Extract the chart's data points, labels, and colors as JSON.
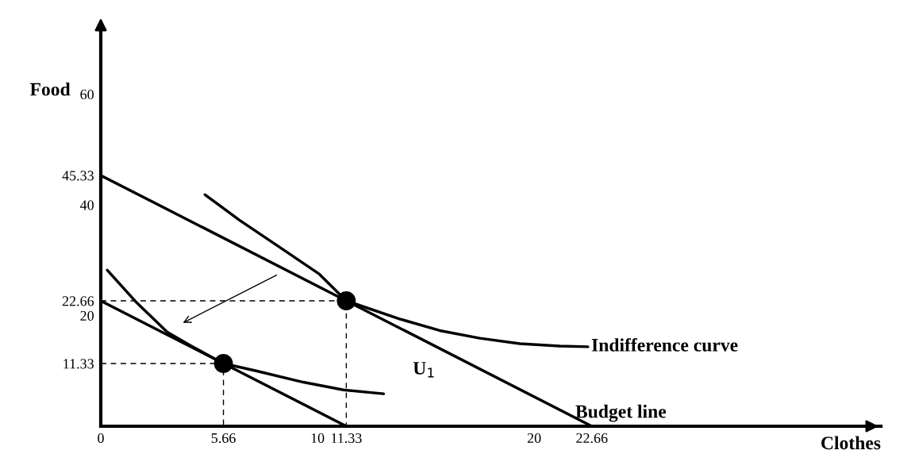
{
  "chart_data": {
    "type": "line",
    "xlabel": "Clothes",
    "ylabel": "Food",
    "xlim": [
      0,
      36
    ],
    "ylim": [
      0,
      72
    ],
    "xticks": [
      0,
      5.66,
      10,
      11.33,
      20,
      22.66
    ],
    "yticks": [
      11.33,
      20,
      22.66,
      40,
      45.33,
      60
    ],
    "grid": false,
    "marker": "none",
    "line_style": "solid",
    "series": [
      {
        "color": "#000000",
        "x": [
          0,
          22.66
        ],
        "values": [
          45.33,
          0
        ]
      },
      {
        "color": "#000000",
        "x": [
          0,
          11.33
        ],
        "values": [
          22.66,
          0
        ]
      },
      {
        "color": "#000000",
        "x": [
          4.81,
          6.4,
          8.25,
          10.09,
          11.33,
          13.79,
          15.64,
          17.49,
          19.34,
          21.18,
          22.48
        ],
        "values": [
          41.84,
          37.24,
          32.36,
          27.48,
          22.66,
          19.39,
          17.29,
          15.9,
          14.92,
          14.5,
          14.36
        ]
      },
      {
        "color": "#000000",
        "x": [
          0.3,
          1.59,
          3.07,
          4.18,
          5.66,
          7.13,
          9.35,
          11.2,
          13.05
        ],
        "values": [
          28.2,
          22.6,
          17.0,
          14.5,
          11.33,
          10.04,
          7.95,
          6.56,
          5.86
        ]
      },
      {
        "type": "line",
        "color": "#000000",
        "line_style": "dashed",
        "x": [
          0,
          11.33,
          11.33
        ],
        "values": [
          22.66,
          22.66,
          0
        ]
      },
      {
        "type": "line",
        "color": "#000000",
        "line_style": "dashed",
        "x": [
          0,
          5.66,
          5.66
        ],
        "values": [
          11.33,
          11.33,
          0
        ]
      },
      {
        "type": "scatter",
        "color": "#000000",
        "marker": "circle",
        "x": [
          11.33,
          5.66
        ],
        "values": [
          22.66,
          11.33
        ]
      }
    ],
    "annotations": [
      {
        "text": "Indifference curve",
        "x": 22.48,
        "y": 14.36
      },
      "U$_{1}$",
      {
        "text": "Budget line",
        "x": 22.66,
        "y": 0
      }
    ]
  }
}
